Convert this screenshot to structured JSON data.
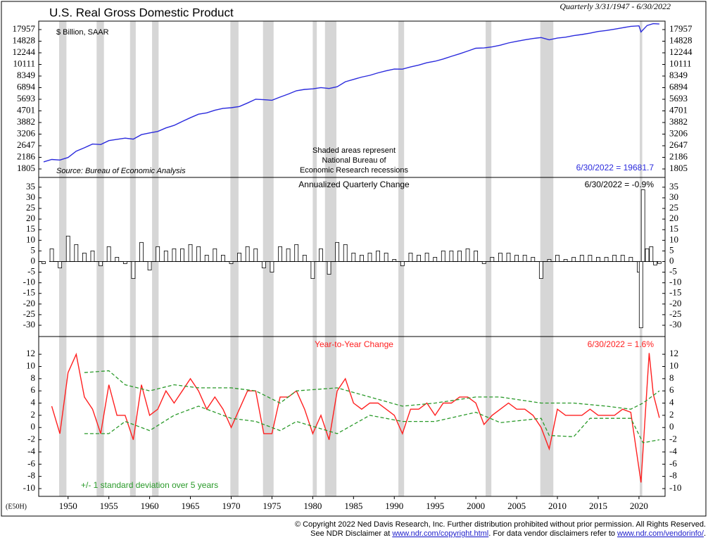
{
  "header": {
    "title": "U.S. Real Gross Domestic Product",
    "subtitle": "Quarterly 3/31/1947 - 6/30/2022",
    "code": "(E50H)"
  },
  "recessions": [
    [
      1948.9,
      1949.8
    ],
    [
      1953.5,
      1954.4
    ],
    [
      1957.6,
      1958.3
    ],
    [
      1960.3,
      1961.1
    ],
    [
      1969.9,
      1970.9
    ],
    [
      1973.9,
      1975.2
    ],
    [
      1980.0,
      1980.5
    ],
    [
      1981.5,
      1982.9
    ],
    [
      1990.5,
      1991.2
    ],
    [
      2001.2,
      2001.9
    ],
    [
      2007.9,
      2009.5
    ],
    [
      2020.1,
      2020.4
    ]
  ],
  "chart_data": [
    {
      "type": "line",
      "log": true,
      "unit_label": "$ Billion, SAAR",
      "source": "Source: Bureau of Economic Analysis",
      "note": [
        "Shaded areas represent",
        "National Bureau of",
        "Economic Research recessions"
      ],
      "last_label": "6/30/2022 = 19681.7",
      "xlim": [
        1946.4,
        2023.2
      ],
      "ylim": [
        1570,
        20640
      ],
      "yticks": [
        17957,
        14828,
        12244,
        10111,
        8349,
        6894,
        5693,
        4701,
        3882,
        3206,
        2647,
        2186,
        1805
      ],
      "series": [
        {
          "color": "#2b2bdd",
          "x": [
            1947,
            1948,
            1949,
            1950,
            1951,
            1952,
            1953,
            1954,
            1955,
            1956,
            1957,
            1958,
            1959,
            1960,
            1961,
            1962,
            1963,
            1964,
            1965,
            1966,
            1967,
            1968,
            1969,
            1970,
            1971,
            1972,
            1973,
            1974,
            1975,
            1976,
            1977,
            1978,
            1979,
            1980,
            1981,
            1982,
            1983,
            1984,
            1985,
            1986,
            1987,
            1988,
            1989,
            1990,
            1991,
            1992,
            1993,
            1994,
            1995,
            1996,
            1997,
            1998,
            1999,
            2000,
            2001,
            2002,
            2003,
            2004,
            2005,
            2006,
            2007,
            2008,
            2009,
            2010,
            2011,
            2012,
            2013,
            2014,
            2015,
            2016,
            2017,
            2018,
            2019,
            2020,
            2020.25,
            2021,
            2021.75,
            2022.5
          ],
          "values": [
            2030,
            2110,
            2090,
            2180,
            2420,
            2560,
            2720,
            2700,
            2880,
            2940,
            3000,
            2950,
            3180,
            3270,
            3350,
            3550,
            3700,
            3950,
            4200,
            4450,
            4550,
            4750,
            4900,
            4950,
            5050,
            5350,
            5700,
            5650,
            5600,
            5900,
            6200,
            6550,
            6700,
            6760,
            6900,
            6800,
            7000,
            7600,
            7900,
            8200,
            8450,
            8800,
            9100,
            9370,
            9350,
            9700,
            10000,
            10400,
            10650,
            11050,
            11550,
            12050,
            12600,
            13200,
            13260,
            13490,
            13880,
            14400,
            14800,
            15150,
            15500,
            15750,
            15180,
            15600,
            15850,
            16250,
            16550,
            16930,
            17400,
            17680,
            18080,
            18500,
            18950,
            19100,
            17258,
            19200,
            19800,
            19681.7
          ]
        }
      ]
    },
    {
      "type": "bar",
      "title": "Annualized Quarterly Change",
      "last_label": "6/30/2022 = -0.9%",
      "color": "#000",
      "xlim": [
        1946.4,
        2023.2
      ],
      "ylim": [
        -35.3,
        39.6
      ],
      "yticks": [
        35,
        30,
        25,
        20,
        15,
        10,
        5,
        0,
        -5,
        -10,
        -15,
        -20,
        -25,
        -30
      ],
      "x": [
        1947,
        1948,
        1949,
        1950,
        1951,
        1952,
        1953,
        1954,
        1955,
        1956,
        1957,
        1958,
        1959,
        1960,
        1961,
        1962,
        1963,
        1964,
        1965,
        1966,
        1967,
        1968,
        1969,
        1970,
        1971,
        1972,
        1973,
        1974,
        1975,
        1976,
        1977,
        1978,
        1979,
        1980,
        1981,
        1982,
        1983,
        1984,
        1985,
        1986,
        1987,
        1988,
        1989,
        1990,
        1991,
        1992,
        1993,
        1994,
        1995,
        1996,
        1997,
        1998,
        1999,
        2000,
        2001,
        2002,
        2003,
        2004,
        2005,
        2006,
        2007,
        2008,
        2009,
        2010,
        2011,
        2012,
        2013,
        2014,
        2015,
        2016,
        2017,
        2018,
        2019,
        2020,
        2020.25,
        2020.5,
        2021,
        2021.5,
        2022,
        2022.5
      ],
      "values": [
        -1,
        6,
        -3,
        12,
        8,
        4,
        5,
        -2,
        7,
        2,
        -1,
        -8,
        9,
        -4,
        7,
        5,
        6,
        6,
        8,
        7,
        3,
        6,
        3,
        -1,
        4,
        7,
        6,
        -3,
        -5,
        7,
        6,
        8,
        3,
        -8,
        6,
        -6,
        9,
        8,
        4,
        3,
        4,
        5,
        4,
        1,
        -2,
        4,
        3,
        4,
        2,
        5,
        5,
        5,
        6,
        5,
        -1,
        2,
        4,
        4,
        3,
        3,
        2,
        -8,
        1,
        3,
        1,
        2,
        3,
        3,
        2,
        2,
        3,
        3,
        2,
        -5,
        -31.2,
        33.8,
        6,
        7,
        -1.6,
        -0.9
      ]
    },
    {
      "type": "line",
      "title": "Year-to-Year Change",
      "last_label": "6/30/2022 = 1.6%",
      "legend_label": "+/- 1 standard deviation over 5 years",
      "xlim": [
        1946.4,
        2023.2
      ],
      "ylim": [
        -11.27,
        14.9
      ],
      "yticks": [
        12,
        10,
        8,
        6,
        4,
        2,
        0,
        -2,
        -4,
        -6,
        -8,
        -10
      ],
      "xticks": [
        1950,
        1955,
        1960,
        1965,
        1970,
        1975,
        1980,
        1985,
        1990,
        1995,
        2000,
        2005,
        2010,
        2015,
        2020
      ],
      "series": [
        {
          "color": "#ff2020",
          "x": [
            1948,
            1949,
            1950,
            1951,
            1952,
            1953,
            1954,
            1955,
            1956,
            1957,
            1958,
            1959,
            1960,
            1961,
            1962,
            1963,
            1964,
            1965,
            1966,
            1967,
            1968,
            1969,
            1970,
            1971,
            1972,
            1973,
            1974,
            1975,
            1976,
            1977,
            1978,
            1979,
            1980,
            1981,
            1982,
            1983,
            1984,
            1985,
            1986,
            1987,
            1988,
            1989,
            1990,
            1991,
            1992,
            1993,
            1994,
            1995,
            1996,
            1997,
            1998,
            1999,
            2000,
            2001,
            2002,
            2003,
            2004,
            2005,
            2006,
            2007,
            2008,
            2009,
            2010,
            2011,
            2012,
            2013,
            2014,
            2015,
            2016,
            2017,
            2018,
            2019,
            2020.25,
            2021.25,
            2021.75,
            2022.5
          ],
          "values": [
            3.5,
            -1,
            9,
            12,
            5,
            3,
            -1,
            7,
            2,
            2,
            -2,
            7,
            2,
            3,
            6,
            4,
            6,
            8,
            6,
            3,
            5,
            3,
            0,
            3,
            6,
            6,
            -1,
            -1,
            5,
            5,
            6,
            3,
            -1,
            2,
            -2,
            6,
            8,
            4,
            3,
            4,
            4,
            3,
            2,
            -1,
            3,
            3,
            4,
            2,
            4,
            4,
            5,
            5,
            4,
            0.5,
            2,
            3,
            4,
            3,
            3,
            2,
            0,
            -3.5,
            3,
            2,
            2,
            2,
            3,
            2,
            2,
            2,
            3,
            2.5,
            -9,
            12.2,
            5.5,
            1.6
          ]
        },
        {
          "color": "#2a9a2a",
          "dash": "5,3",
          "x": [
            1952,
            1955,
            1957,
            1960,
            1963,
            1966,
            1970,
            1973,
            1976,
            1978,
            1983,
            1987,
            1991,
            1995,
            2000,
            2003,
            2008,
            2012,
            2016,
            2019,
            2020.5,
            2022.5
          ],
          "values": [
            9,
            9.3,
            7,
            6,
            7,
            6.5,
            6.5,
            6,
            4,
            6,
            6.5,
            5,
            3.5,
            4,
            5,
            5,
            4,
            4,
            3.5,
            3,
            4,
            6
          ]
        },
        {
          "color": "#2a9a2a",
          "dash": "5,3",
          "x": [
            1952,
            1955,
            1957,
            1960,
            1963,
            1966,
            1970,
            1973,
            1976,
            1978,
            1983,
            1987,
            1991,
            1995,
            2000,
            2003,
            2008,
            2009,
            2012,
            2014,
            2019,
            2020.5,
            2022.5
          ],
          "values": [
            -1,
            -1,
            1,
            -0.5,
            2,
            3.5,
            1.5,
            1,
            -0.5,
            1,
            -1,
            2,
            1,
            1,
            2.5,
            0.8,
            1.5,
            -1.3,
            -1.5,
            1.5,
            1.5,
            -2.5,
            -2
          ]
        }
      ]
    }
  ],
  "footer": {
    "copyright": "© Copyright 2022 Ned Davis Research, Inc.  Further distribution prohibited without prior permission.  All Rights Reserved.",
    "line2": [
      "See NDR Disclaimer at ",
      "www.ndr.com/copyright.html",
      ". For data vendor disclaimers refer to ",
      "www.ndr.com/vendorinfo/",
      "."
    ]
  }
}
